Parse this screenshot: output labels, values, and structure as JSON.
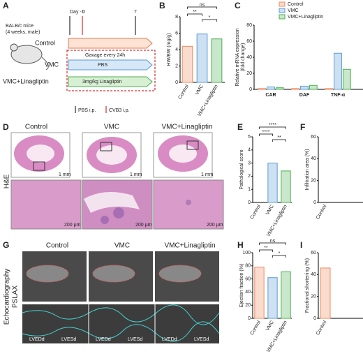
{
  "panel_letters": [
    "A",
    "B",
    "C",
    "D",
    "E",
    "F",
    "G",
    "H",
    "I"
  ],
  "schematic": {
    "mouse": "BALB/c mice",
    "mouse_note": "(4 weeks, male)",
    "days": [
      "Day -1",
      "0",
      "7"
    ],
    "groups": [
      "Control",
      "VMC",
      "VMC+Linagliptin"
    ],
    "gavage": "Gavage every 24h",
    "pbs": "PBS",
    "linagliptin": "3mg/kg Linagliptin",
    "legend": [
      "PBS i.p.",
      "CVB3 i.p."
    ]
  },
  "histology": {
    "stain": "H&E",
    "groups": [
      "Control",
      "VMC",
      "VMC+Linagliptin"
    ],
    "scale_whole": "1 mm",
    "scale_zoom": "200 μm"
  },
  "echo": {
    "method": "Echocardiography",
    "view": "PSLAX",
    "groups": [
      "Control",
      "VMC",
      "VMC+Linagliptin"
    ],
    "measures": [
      "LVEDd",
      "LVESd"
    ]
  },
  "chart_data": [
    {
      "type": "bar",
      "ylabel": [
        "HW/BW (mg/g)"
      ],
      "categories": [
        "Control",
        "VMC",
        "VMC+Linagliptin"
      ],
      "values": [
        4.4,
        5.9,
        5.3
      ],
      "colors": [
        "#f08a5d",
        "#5b9bd5",
        "#4caf50"
      ],
      "ylim": [
        0,
        8
      ],
      "yticks": [
        0,
        2,
        4,
        6,
        8
      ],
      "significance": [
        "ns",
        "**",
        "*"
      ]
    },
    {
      "type": "bar",
      "ylabel": [
        "Relative mRNA expression",
        "(fold change)"
      ],
      "categories": [
        "CAR",
        "DAF",
        "TNF-α"
      ],
      "series": [
        {
          "name": "Control",
          "color": "#f08a5d",
          "values": [
            1,
            1,
            1
          ]
        },
        {
          "name": "VMC",
          "color": "#5b9bd5",
          "values": [
            3,
            4,
            45
          ]
        },
        {
          "name": "VMC+Linagliptin",
          "color": "#4caf50",
          "values": [
            2,
            5,
            25
          ]
        }
      ],
      "ylim": [
        0,
        80
      ],
      "yticks": [
        0,
        20,
        40,
        60,
        80
      ]
    },
    {
      "type": "bar",
      "ylabel": [
        "Pathological score"
      ],
      "categories": [
        "Control",
        "VMC",
        "VMC+Linagliptin"
      ],
      "values": [
        0,
        3,
        2.4
      ],
      "colors": [
        "#f08a5d",
        "#5b9bd5",
        "#4caf50"
      ],
      "ylim": [
        0,
        5
      ],
      "yticks": [
        0,
        1,
        2,
        3,
        4,
        5
      ],
      "significance": [
        "****",
        "****",
        "**"
      ]
    },
    {
      "type": "bar",
      "ylabel": [
        "Infiltration area (%)"
      ],
      "categories": [
        "Control"
      ],
      "values": [
        0
      ],
      "colors": [
        "#f08a5d"
      ],
      "ylim": [
        0,
        60
      ],
      "yticks": [
        0,
        20,
        40,
        60
      ]
    },
    {
      "type": "bar",
      "ylabel": [
        "Ejection fraction (%)"
      ],
      "categories": [
        "Control",
        "VMC",
        "VMC+Linagliptin"
      ],
      "values": [
        78,
        62,
        71
      ],
      "colors": [
        "#f08a5d",
        "#5b9bd5",
        "#4caf50"
      ],
      "ylim": [
        0,
        100
      ],
      "yticks": [
        0,
        20,
        40,
        60,
        80,
        100
      ],
      "significance": [
        "ns",
        "**",
        "*"
      ]
    },
    {
      "type": "bar",
      "ylabel": [
        "Fractional shortening (%)"
      ],
      "categories": [
        "Control"
      ],
      "values": [
        46
      ],
      "colors": [
        "#f08a5d"
      ],
      "ylim": [
        0,
        60
      ],
      "yticks": [
        0,
        20,
        40,
        60
      ]
    }
  ]
}
